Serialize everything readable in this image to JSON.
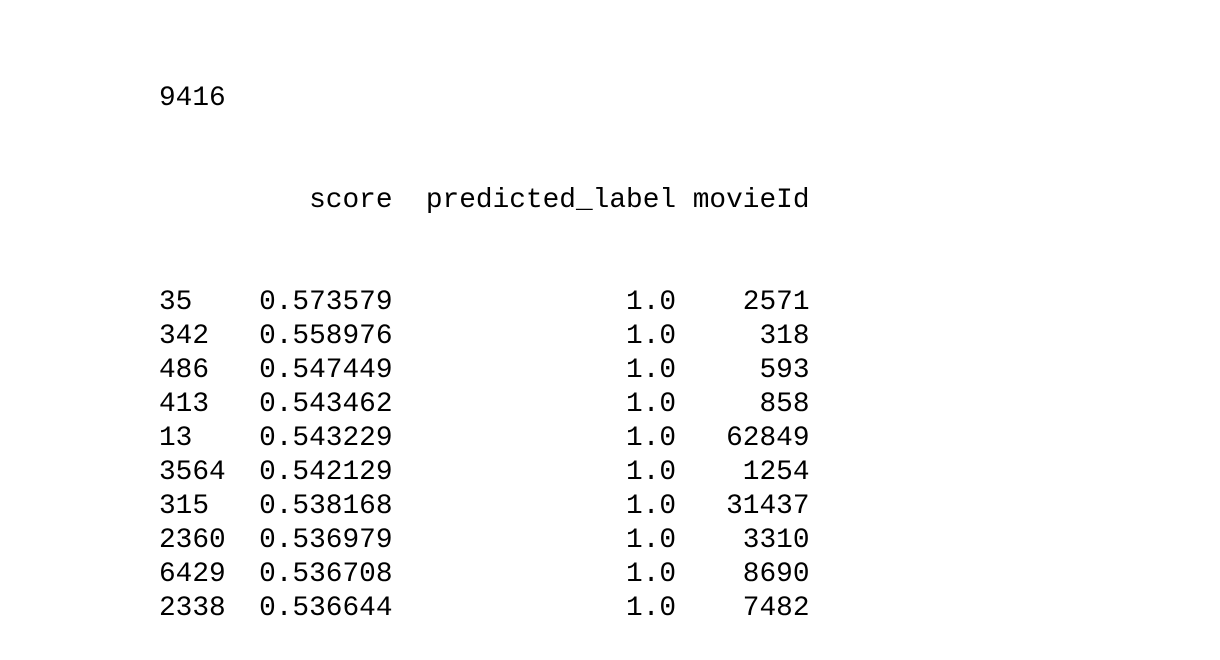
{
  "output": {
    "count": "9416",
    "table": {
      "columns": [
        "score",
        "predicted_label",
        "movieId"
      ],
      "rows": [
        {
          "index": "35",
          "score": "0.573579",
          "predicted_label": "1.0",
          "movieId": "2571"
        },
        {
          "index": "342",
          "score": "0.558976",
          "predicted_label": "1.0",
          "movieId": "318"
        },
        {
          "index": "486",
          "score": "0.547449",
          "predicted_label": "1.0",
          "movieId": "593"
        },
        {
          "index": "413",
          "score": "0.543462",
          "predicted_label": "1.0",
          "movieId": "858"
        },
        {
          "index": "13",
          "score": "0.543229",
          "predicted_label": "1.0",
          "movieId": "62849"
        },
        {
          "index": "3564",
          "score": "0.542129",
          "predicted_label": "1.0",
          "movieId": "1254"
        },
        {
          "index": "315",
          "score": "0.538168",
          "predicted_label": "1.0",
          "movieId": "31437"
        },
        {
          "index": "2360",
          "score": "0.536979",
          "predicted_label": "1.0",
          "movieId": "3310"
        },
        {
          "index": "6429",
          "score": "0.536708",
          "predicted_label": "1.0",
          "movieId": "8690"
        },
        {
          "index": "2338",
          "score": "0.536644",
          "predicted_label": "1.0",
          "movieId": "7482"
        }
      ]
    }
  }
}
